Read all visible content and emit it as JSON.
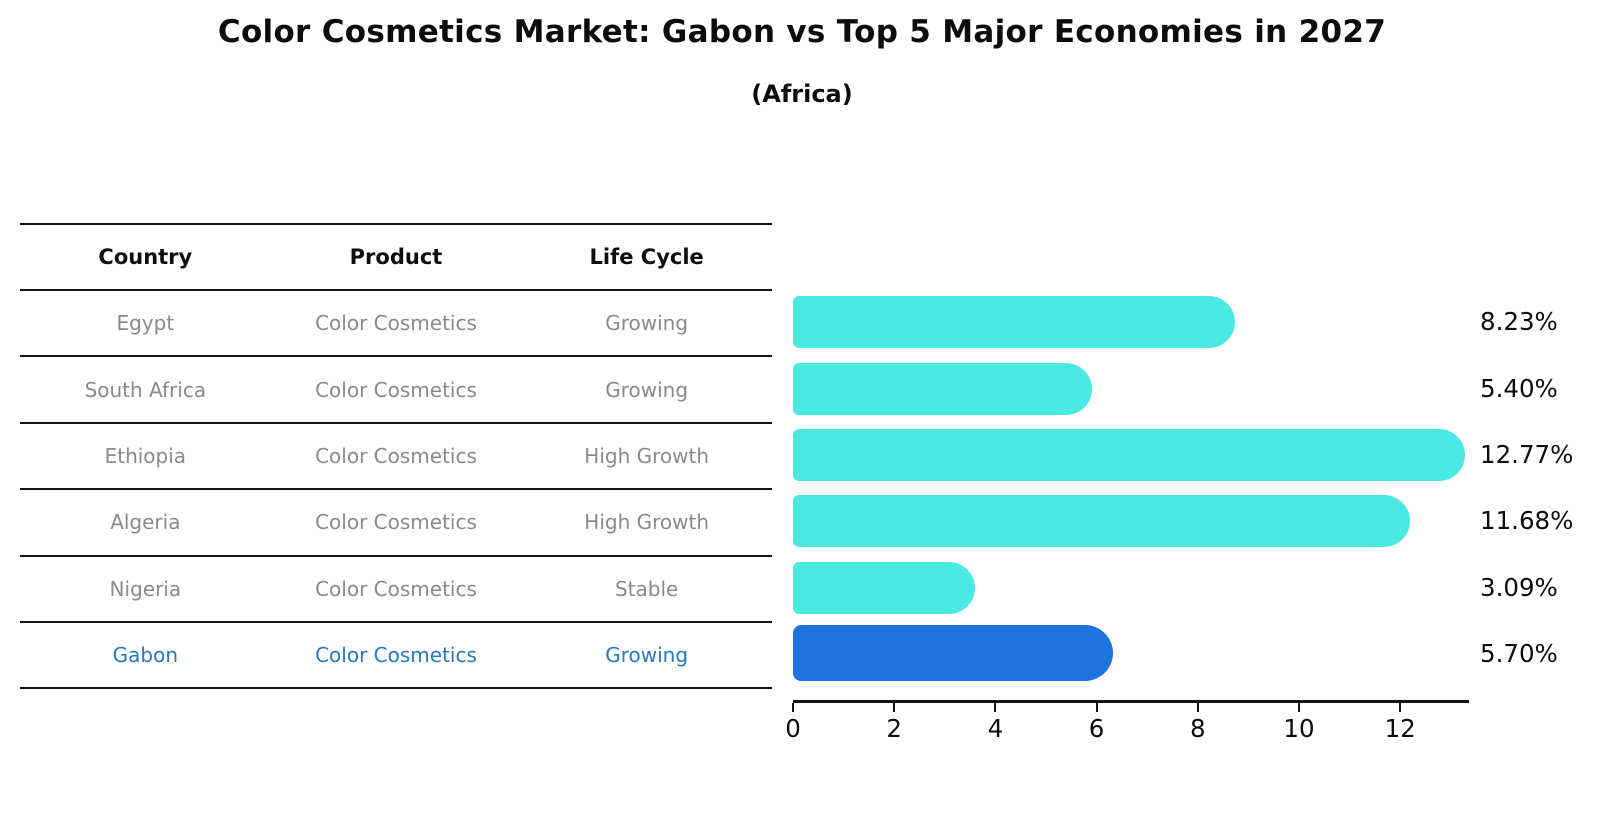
{
  "title": "Color Cosmetics Market: Gabon vs Top 5 Major Economies in 2027",
  "subtitle": "(Africa)",
  "colors": {
    "bar": "#4AE9E4",
    "highlight_bar": "#1E74DF",
    "highlight_text": "#2878BE",
    "table_text": "#8A8A8A",
    "line": "#141414",
    "label_text": "#0D0D0D"
  },
  "table": {
    "headers": [
      "Country",
      "Product",
      "Life Cycle"
    ],
    "rows": [
      {
        "country": "Egypt",
        "product": "Color Cosmetics",
        "life_cycle": "Growing",
        "highlight": false
      },
      {
        "country": "South Africa",
        "product": "Color Cosmetics",
        "life_cycle": "Growing",
        "highlight": false
      },
      {
        "country": "Ethiopia",
        "product": "Color Cosmetics",
        "life_cycle": "High Growth",
        "highlight": false
      },
      {
        "country": "Algeria",
        "product": "Color Cosmetics",
        "life_cycle": "High Growth",
        "highlight": false
      },
      {
        "country": "Nigeria",
        "product": "Color Cosmetics",
        "life_cycle": "Stable",
        "highlight": false
      },
      {
        "country": "Gabon",
        "product": "Color Cosmetics",
        "life_cycle": "Growing",
        "highlight": true
      }
    ]
  },
  "chart_data": {
    "type": "bar",
    "orientation": "horizontal",
    "title": "Color Cosmetics Market: Gabon vs Top 5 Major Economies in 2027",
    "subtitle": "(Africa)",
    "categories": [
      "Egypt",
      "South Africa",
      "Ethiopia",
      "Algeria",
      "Nigeria",
      "Gabon"
    ],
    "values": [
      8.23,
      5.4,
      12.77,
      11.68,
      3.09,
      5.7
    ],
    "value_labels": [
      "8.23%",
      "5.40%",
      "12.77%",
      "11.68%",
      "3.09%",
      "5.70%"
    ],
    "highlight_index": 5,
    "xticks": [
      0,
      2,
      4,
      6,
      8,
      10,
      12
    ],
    "xlim": [
      0,
      13.4
    ],
    "xlabel": "",
    "ylabel": "",
    "grid": false,
    "legend": false
  }
}
